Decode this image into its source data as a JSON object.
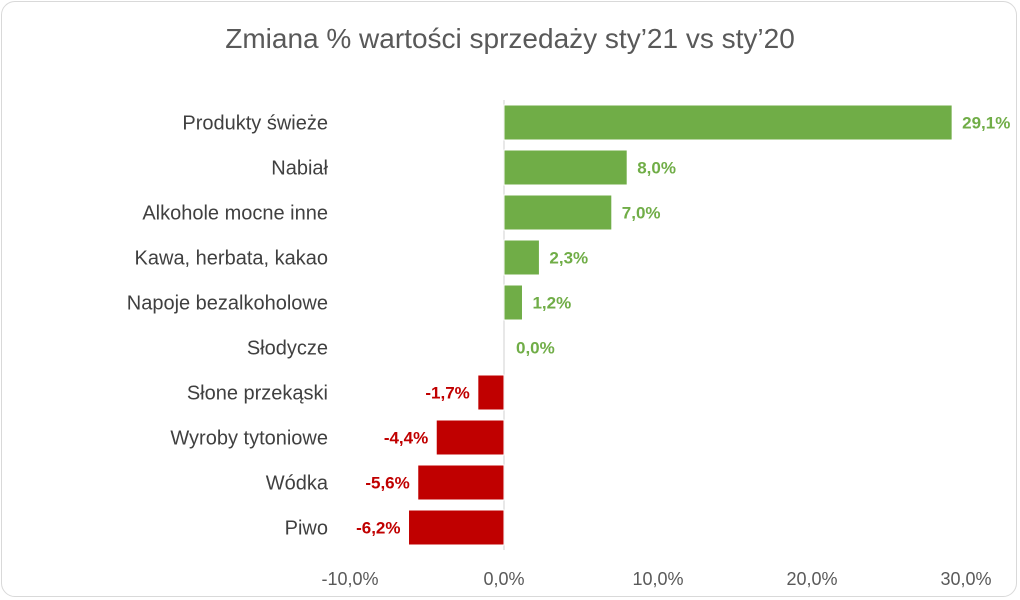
{
  "chart_data": {
    "type": "bar",
    "orientation": "horizontal",
    "title": "Zmiana % wartości sprzedaży sty’21 vs sty’20",
    "categories": [
      "Produkty świeże",
      "Nabiał",
      "Alkohole mocne inne",
      "Kawa, herbata, kakao",
      "Napoje bezalkoholowe",
      "Słodycze",
      "Słone przekąski",
      "Wyroby tytoniowe",
      "Wódka",
      "Piwo"
    ],
    "values": [
      29.1,
      8.0,
      7.0,
      2.3,
      1.2,
      0.0,
      -1.7,
      -4.4,
      -5.6,
      -6.2
    ],
    "data_labels": [
      "29,1%",
      "8,0%",
      "7,0%",
      "2,3%",
      "1,2%",
      "0,0%",
      "-1,7%",
      "-4,4%",
      "-5,6%",
      "-6,2%"
    ],
    "xlim": [
      -10,
      30
    ],
    "xticks": [
      -10,
      0,
      10,
      20,
      30
    ],
    "xtick_labels": [
      "-10,0%",
      "0,0%",
      "10,0%",
      "20,0%",
      "30,0%"
    ],
    "grid": false,
    "colors": {
      "positive": "#70ad47",
      "negative": "#c00000"
    }
  }
}
